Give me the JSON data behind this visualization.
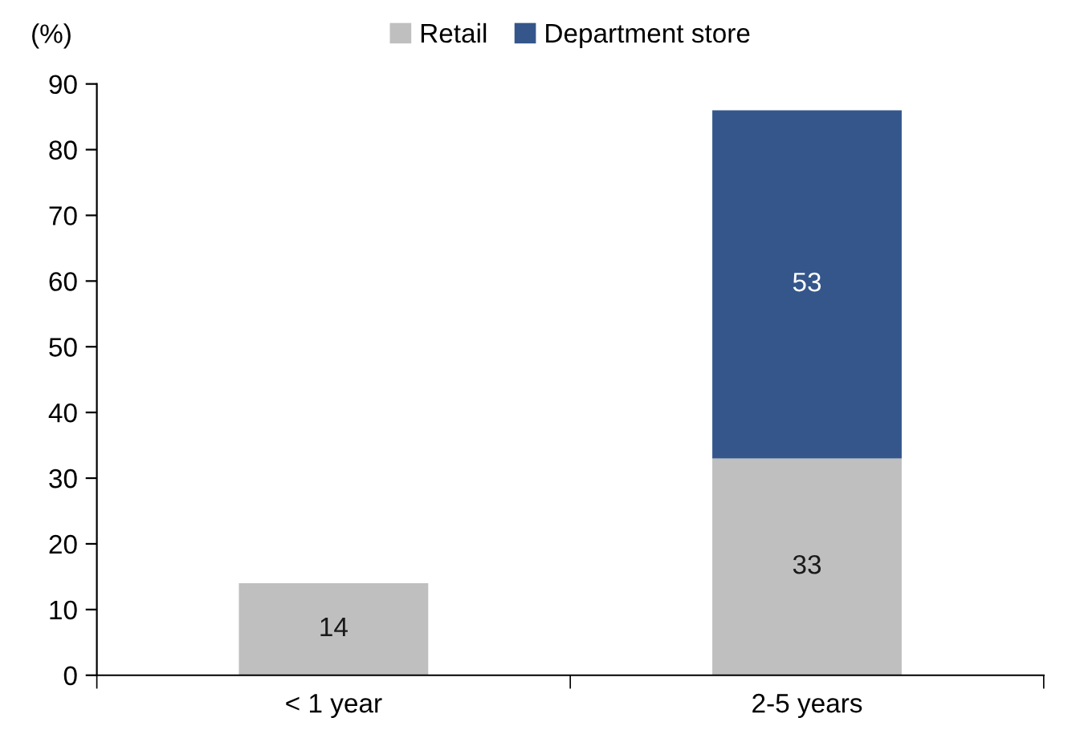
{
  "chart_data": {
    "type": "bar",
    "stacked": true,
    "ylabel": "(%)",
    "categories": [
      "< 1 year",
      "2-5 years"
    ],
    "series": [
      {
        "name": "Retail",
        "color": "#bfbfbf",
        "values": [
          14,
          33
        ]
      },
      {
        "name": "Department store",
        "color": "#34568b",
        "values": [
          null,
          53
        ]
      }
    ],
    "ylim": [
      0,
      90
    ],
    "yticks": [
      0,
      10,
      20,
      30,
      40,
      50,
      60,
      70,
      80,
      90
    ],
    "data_labels": true,
    "legend": "top",
    "grid": false
  }
}
